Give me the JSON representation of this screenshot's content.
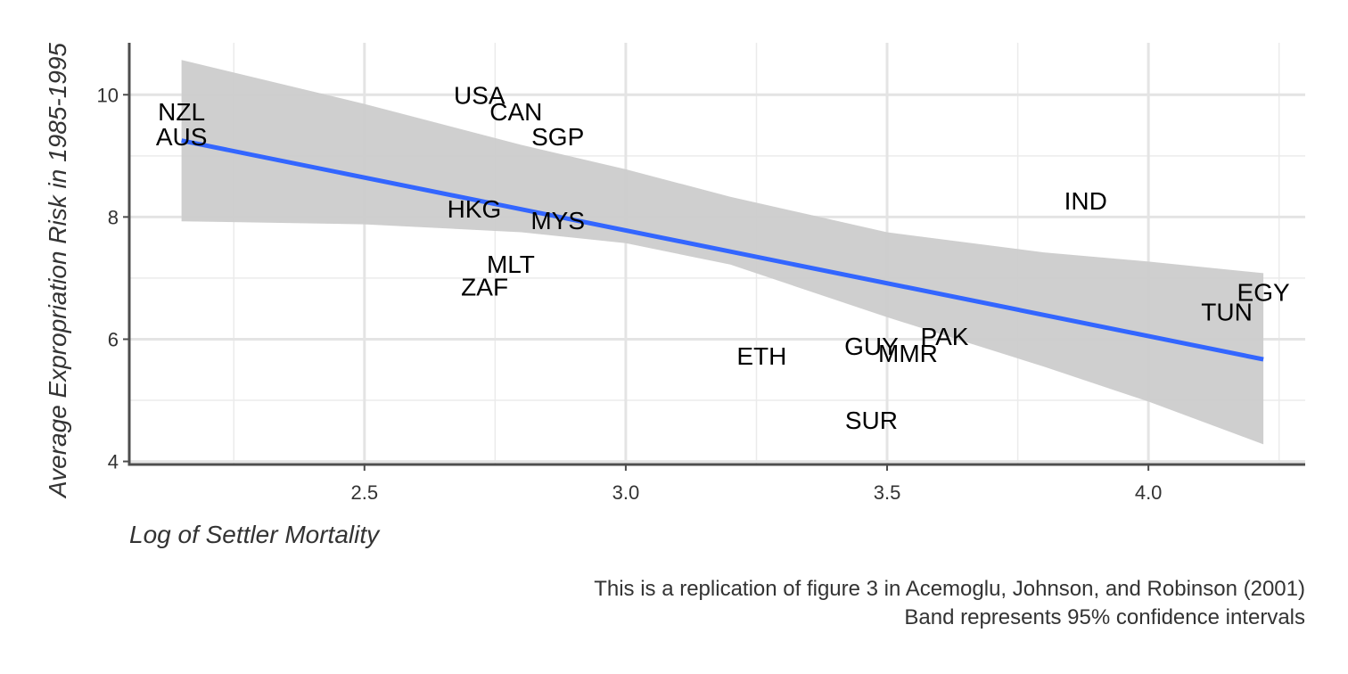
{
  "chart_data": {
    "type": "scatter",
    "title": "",
    "xlabel": "Log of Settler Mortality",
    "ylabel": "Average Expropriation Risk in 1985-1995",
    "xlim": [
      2.05,
      4.3
    ],
    "ylim": [
      3.95,
      10.85
    ],
    "x_ticks": [
      2.5,
      3.0,
      3.5,
      4.0
    ],
    "x_tick_labels": [
      "2.5",
      "3.0",
      "3.5",
      "4.0"
    ],
    "y_ticks": [
      4,
      6,
      8,
      10
    ],
    "y_tick_labels": [
      "4",
      "6",
      "8",
      "10"
    ],
    "grid": true,
    "points": [
      {
        "label": "USA",
        "x": 2.72,
        "y": 10.0
      },
      {
        "label": "NZL",
        "x": 2.15,
        "y": 9.73
      },
      {
        "label": "CAN",
        "x": 2.79,
        "y": 9.73
      },
      {
        "label": "AUS",
        "x": 2.15,
        "y": 9.32
      },
      {
        "label": "SGP",
        "x": 2.87,
        "y": 9.32
      },
      {
        "label": "IND",
        "x": 3.88,
        "y": 8.27
      },
      {
        "label": "HKG",
        "x": 2.71,
        "y": 8.14
      },
      {
        "label": "MYS",
        "x": 2.87,
        "y": 7.95
      },
      {
        "label": "MLT",
        "x": 2.78,
        "y": 7.23
      },
      {
        "label": "ZAF",
        "x": 2.73,
        "y": 6.86
      },
      {
        "label": "EGY",
        "x": 4.22,
        "y": 6.77
      },
      {
        "label": "TUN",
        "x": 4.15,
        "y": 6.45
      },
      {
        "label": "PAK",
        "x": 3.61,
        "y": 6.05
      },
      {
        "label": "GUY",
        "x": 3.47,
        "y": 5.89
      },
      {
        "label": "MMR",
        "x": 3.54,
        "y": 5.77
      },
      {
        "label": "ETH",
        "x": 3.26,
        "y": 5.73
      },
      {
        "label": "SUR",
        "x": 3.47,
        "y": 4.68
      }
    ],
    "fit_line": {
      "x": [
        2.15,
        4.22
      ],
      "y": [
        9.25,
        5.67
      ],
      "color": "#3366FF"
    },
    "confidence_band": {
      "x": [
        2.15,
        2.5,
        2.8,
        3.0,
        3.2,
        3.5,
        3.8,
        4.0,
        4.22
      ],
      "upper": [
        10.57,
        9.85,
        9.18,
        8.78,
        8.33,
        7.75,
        7.42,
        7.27,
        7.08
      ],
      "lower": [
        7.93,
        7.88,
        7.75,
        7.57,
        7.22,
        6.36,
        5.55,
        4.98,
        4.28
      ],
      "color": "#cccccc"
    }
  },
  "caption": {
    "line1": "This is a replication of figure 3 in Acemoglu, Johnson, and Robinson (2001)",
    "line2": "Band represents 95% confidence intervals"
  }
}
